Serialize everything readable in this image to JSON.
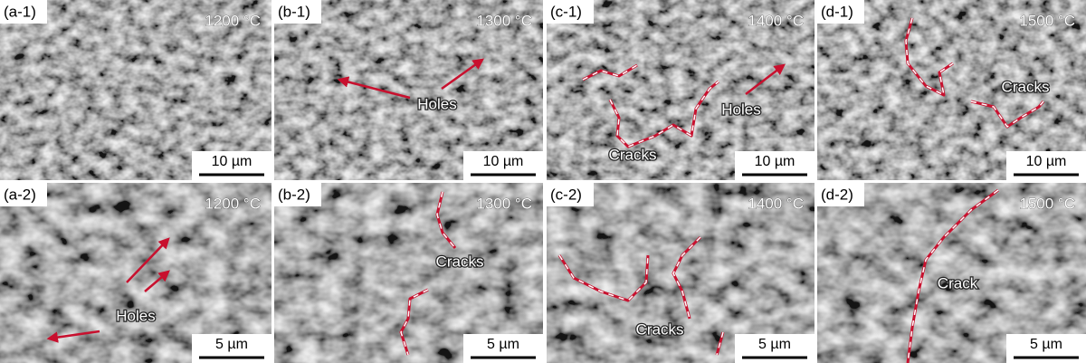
{
  "panels": [
    {
      "label": "(a-1)",
      "temperature": "1200 °C",
      "scale_bar": "10 µm",
      "annotations": []
    },
    {
      "label": "(b-1)",
      "temperature": "1300 °C",
      "scale_bar": "10 µm",
      "annotations": [
        "Holes"
      ]
    },
    {
      "label": "(c-1)",
      "temperature": "1400 °C",
      "scale_bar": "10 µm",
      "annotations": [
        "Cracks",
        "Holes"
      ]
    },
    {
      "label": "(d-1)",
      "temperature": "1500 °C",
      "scale_bar": "10 µm",
      "annotations": [
        "Cracks"
      ]
    },
    {
      "label": "(a-2)",
      "temperature": "1200 °C",
      "scale_bar": "5 µm",
      "annotations": [
        "Holes"
      ]
    },
    {
      "label": "(b-2)",
      "temperature": "1300 °C",
      "scale_bar": "5 µm",
      "annotations": [
        "Cracks"
      ]
    },
    {
      "label": "(c-2)",
      "temperature": "1400 °C",
      "scale_bar": "5 µm",
      "annotations": [
        "Cracks"
      ]
    },
    {
      "label": "(d-2)",
      "temperature": "1500 °C",
      "scale_bar": "5 µm",
      "annotations": [
        "Crack"
      ]
    }
  ]
}
